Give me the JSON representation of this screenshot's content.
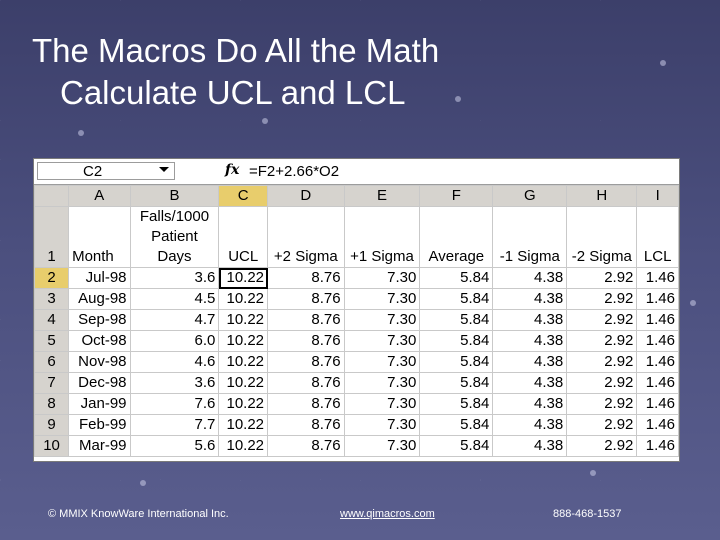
{
  "slide": {
    "title_line1": "The Macros Do All the Math",
    "title_line2": "Calculate UCL and LCL"
  },
  "excel": {
    "name_box": "C2",
    "fx_label": "fx",
    "formula": "=F2+2.66*O2",
    "columns": [
      "A",
      "B",
      "C",
      "D",
      "E",
      "F",
      "G",
      "H",
      "I"
    ],
    "header_row": {
      "row_label": "1",
      "cells": [
        "Month",
        "Falls/1000\nPatient\nDays",
        "UCL",
        "+2 Sigma",
        "+1 Sigma",
        "Average",
        "-1 Sigma",
        "-2 Sigma",
        "LCL"
      ]
    },
    "rows": [
      {
        "n": "2",
        "month": "Jul-98",
        "falls": "3.6",
        "ucl": "10.22",
        "p2": "8.76",
        "p1": "7.30",
        "avg": "5.84",
        "m1": "4.38",
        "m2": "2.92",
        "lcl": "1.46"
      },
      {
        "n": "3",
        "month": "Aug-98",
        "falls": "4.5",
        "ucl": "10.22",
        "p2": "8.76",
        "p1": "7.30",
        "avg": "5.84",
        "m1": "4.38",
        "m2": "2.92",
        "lcl": "1.46"
      },
      {
        "n": "4",
        "month": "Sep-98",
        "falls": "4.7",
        "ucl": "10.22",
        "p2": "8.76",
        "p1": "7.30",
        "avg": "5.84",
        "m1": "4.38",
        "m2": "2.92",
        "lcl": "1.46"
      },
      {
        "n": "5",
        "month": "Oct-98",
        "falls": "6.0",
        "ucl": "10.22",
        "p2": "8.76",
        "p1": "7.30",
        "avg": "5.84",
        "m1": "4.38",
        "m2": "2.92",
        "lcl": "1.46"
      },
      {
        "n": "6",
        "month": "Nov-98",
        "falls": "4.6",
        "ucl": "10.22",
        "p2": "8.76",
        "p1": "7.30",
        "avg": "5.84",
        "m1": "4.38",
        "m2": "2.92",
        "lcl": "1.46"
      },
      {
        "n": "7",
        "month": "Dec-98",
        "falls": "3.6",
        "ucl": "10.22",
        "p2": "8.76",
        "p1": "7.30",
        "avg": "5.84",
        "m1": "4.38",
        "m2": "2.92",
        "lcl": "1.46"
      },
      {
        "n": "8",
        "month": "Jan-99",
        "falls": "7.6",
        "ucl": "10.22",
        "p2": "8.76",
        "p1": "7.30",
        "avg": "5.84",
        "m1": "4.38",
        "m2": "2.92",
        "lcl": "1.46"
      },
      {
        "n": "9",
        "month": "Feb-99",
        "falls": "7.7",
        "ucl": "10.22",
        "p2": "8.76",
        "p1": "7.30",
        "avg": "5.84",
        "m1": "4.38",
        "m2": "2.92",
        "lcl": "1.46"
      },
      {
        "n": "10",
        "month": "Mar-99",
        "falls": "5.6",
        "ucl": "10.22",
        "p2": "8.76",
        "p1": "7.30",
        "avg": "5.84",
        "m1": "4.38",
        "m2": "2.92",
        "lcl": "1.46"
      }
    ]
  },
  "footer": {
    "copyright": "© MMIX KnowWare International Inc.",
    "website": "www.qimacros.com",
    "phone": "888-468-1537"
  },
  "colors": {
    "background": "#4b4f7e",
    "header_selected": "#e8cd6c",
    "header_default": "#d6d3ce"
  }
}
